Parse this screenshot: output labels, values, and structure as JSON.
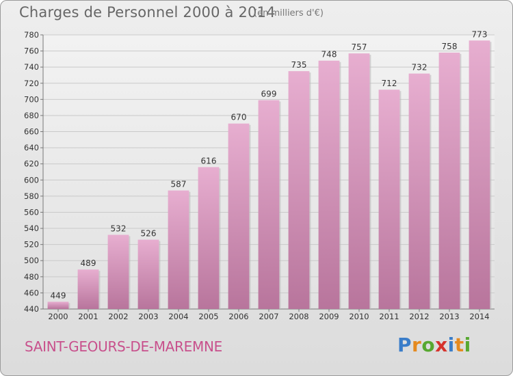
{
  "header": {
    "title": "Charges de Personnel 2000 à 2014",
    "unit": "(en milliers d'€)"
  },
  "footer": {
    "commune": "SAINT-GEOURS-DE-MAREMNE",
    "brand_letters": [
      "P",
      "r",
      "o",
      "x",
      "i",
      "t",
      "i"
    ],
    "brand_colors": [
      "#3a7dc9",
      "#e58a1f",
      "#57a830",
      "#d6332c",
      "#3a7dc9",
      "#e58a1f",
      "#57a830"
    ]
  },
  "colors": {
    "bar_light": "#e7aed0",
    "bar_dark": "#b8759c",
    "text": "#333333"
  },
  "chart_data": {
    "type": "bar",
    "categories": [
      "2000",
      "2001",
      "2002",
      "2003",
      "2004",
      "2005",
      "2006",
      "2007",
      "2008",
      "2009",
      "2010",
      "2011",
      "2012",
      "2013",
      "2014"
    ],
    "values": [
      449,
      489,
      532,
      526,
      587,
      616,
      670,
      699,
      735,
      748,
      757,
      712,
      732,
      758,
      773
    ],
    "data_labels": [
      "449",
      "489",
      "532",
      "526",
      "587",
      "616",
      "670",
      "699",
      "735",
      "748",
      "757",
      "712",
      "732",
      "758",
      "773"
    ],
    "title": "Charges de Personnel 2000 à 2014",
    "unit": "(en milliers d'€)",
    "ylim": [
      440,
      780
    ],
    "yticks": [
      440,
      460,
      480,
      500,
      520,
      540,
      560,
      580,
      600,
      620,
      640,
      660,
      680,
      700,
      720,
      740,
      760,
      780
    ],
    "grid": true,
    "legend": "none"
  }
}
